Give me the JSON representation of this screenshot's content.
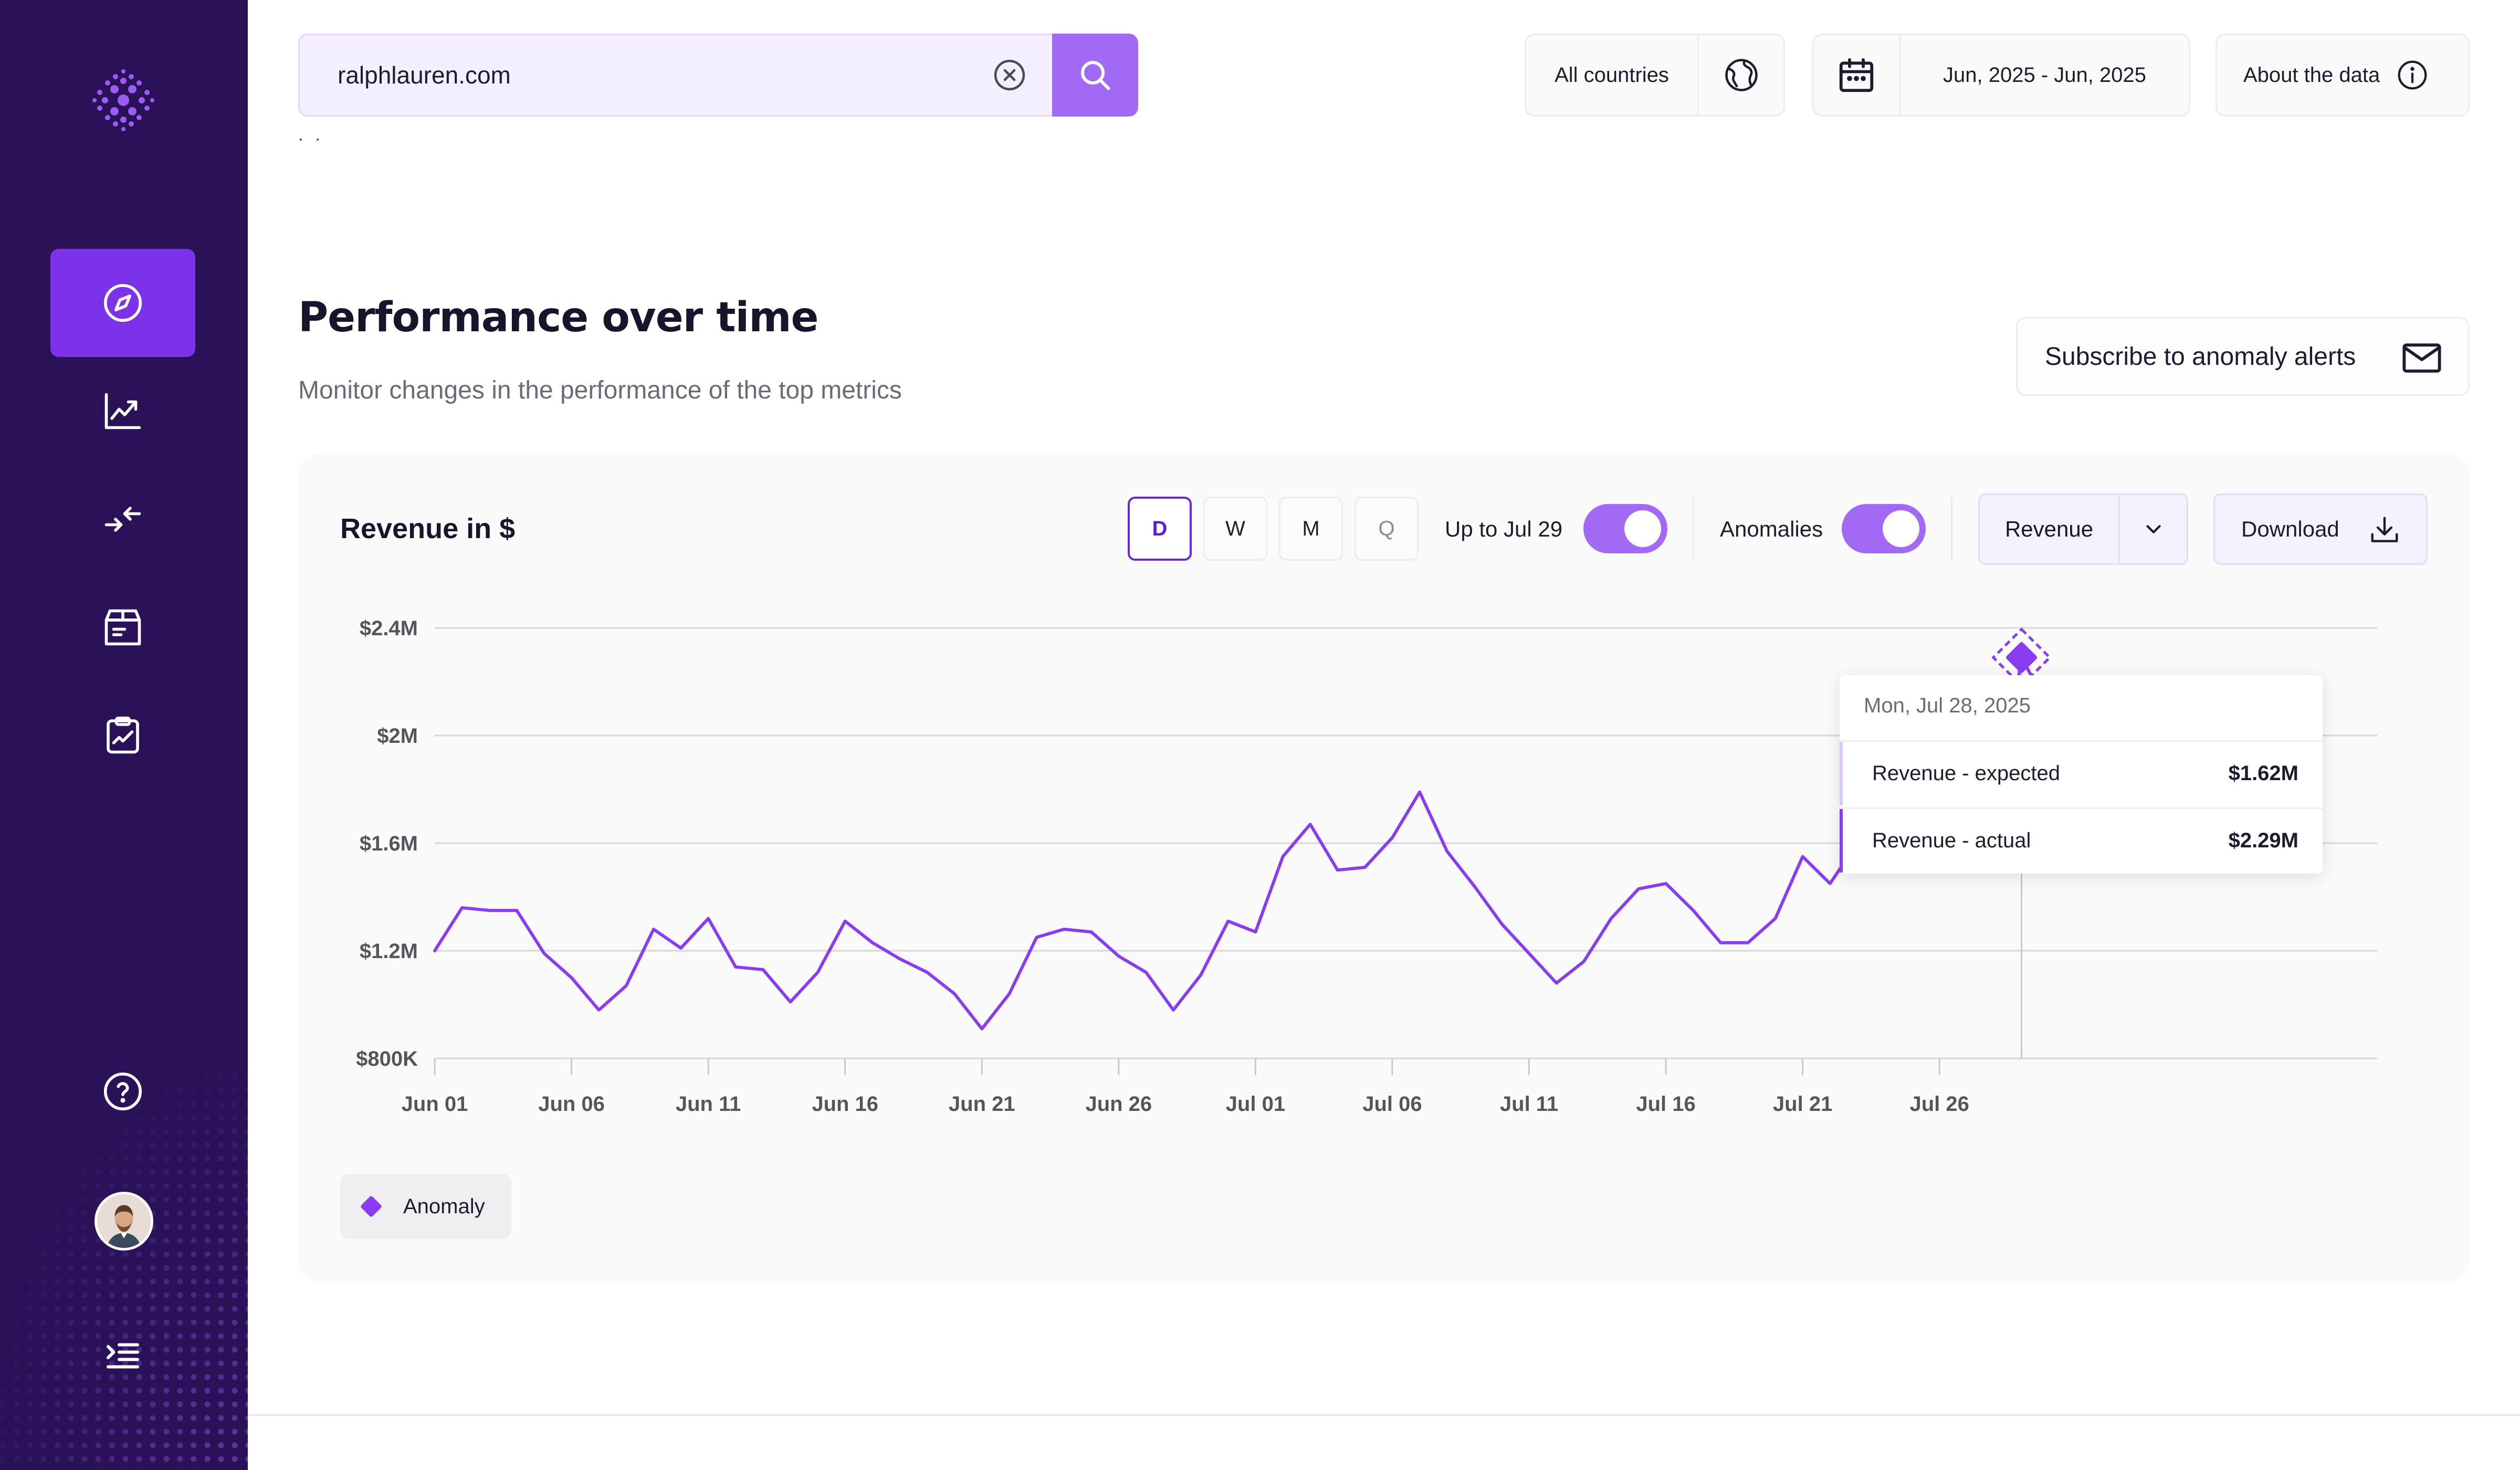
{
  "search": {
    "value": "ralphlauren.com"
  },
  "topbar": {
    "countries_label": "All countries",
    "date_range_label": "Jun, 2025 - Jun, 2025",
    "about_label": "About the data"
  },
  "fragment_text": "˙ ˙",
  "section": {
    "title": "Performance over time",
    "subtitle": "Monitor changes in the performance of the top metrics",
    "subscribe_label": "Subscribe to anomaly alerts"
  },
  "card": {
    "title": "Revenue in $",
    "granularity": [
      "D",
      "W",
      "M",
      "Q"
    ],
    "selected_granularity": "D",
    "up_to_label": "Up to Jul 29",
    "up_to_enabled": true,
    "anomalies_label": "Anomalies",
    "anomalies_enabled": true,
    "metric_select": "Revenue",
    "download_label": "Download",
    "legend_label": "Anomaly"
  },
  "tooltip": {
    "date": "Mon, Jul 28, 2025",
    "expected_label": "Revenue - expected",
    "expected_value": "$1.62M",
    "actual_label": "Revenue - actual",
    "actual_value": "$2.29M"
  },
  "colors": {
    "sidebar": "#2a1158",
    "accent": "#7b32e8",
    "line": "#8a3cf0",
    "toggle": "#a26af4"
  },
  "icons": {
    "nav": [
      "compass-icon",
      "trending-chart-icon",
      "compare-arrows-icon",
      "box-icon",
      "clipboard-chart-icon"
    ],
    "bottom": [
      "help-icon",
      "avatar",
      "menu-collapse-icon"
    ]
  },
  "chart_data": {
    "type": "line",
    "series": [
      {
        "name": "Revenue",
        "values": [
          1.2,
          1.36,
          1.35,
          1.35,
          1.19,
          1.1,
          0.98,
          1.07,
          1.28,
          1.21,
          1.32,
          1.14,
          1.13,
          1.01,
          1.12,
          1.31,
          1.23,
          1.17,
          1.12,
          1.04,
          0.91,
          1.04,
          1.25,
          1.28,
          1.27,
          1.18,
          1.12,
          0.98,
          1.11,
          1.31,
          1.27,
          1.55,
          1.67,
          1.5,
          1.51,
          1.62,
          1.79,
          1.57,
          1.44,
          1.3,
          1.19,
          1.08,
          1.16,
          1.32,
          1.43,
          1.45,
          1.35,
          1.23,
          1.23,
          1.32,
          1.55,
          1.45,
          1.6,
          1.62,
          1.5,
          1.55,
          1.55,
          1.62,
          2.29,
          2.1
        ]
      }
    ],
    "x_tick_labels": [
      "Jun 01",
      "Jun 06",
      "Jun 11",
      "Jun 16",
      "Jun 21",
      "Jun 26",
      "Jul 01",
      "Jul 06",
      "Jul 11",
      "Jul 16",
      "Jul 21",
      "Jul 26"
    ],
    "x_start": "Jun 01",
    "y_tick_labels": [
      "$800K",
      "$1.2M",
      "$1.6M",
      "$2M",
      "$2.4M"
    ],
    "y_ticks": [
      0.8,
      1.2,
      1.6,
      2.0,
      2.4
    ],
    "ylim": [
      0.8,
      2.4
    ],
    "anomaly": {
      "date": "Jul 28",
      "value": 2.29
    },
    "grid": true,
    "legend": "bottom-left"
  }
}
